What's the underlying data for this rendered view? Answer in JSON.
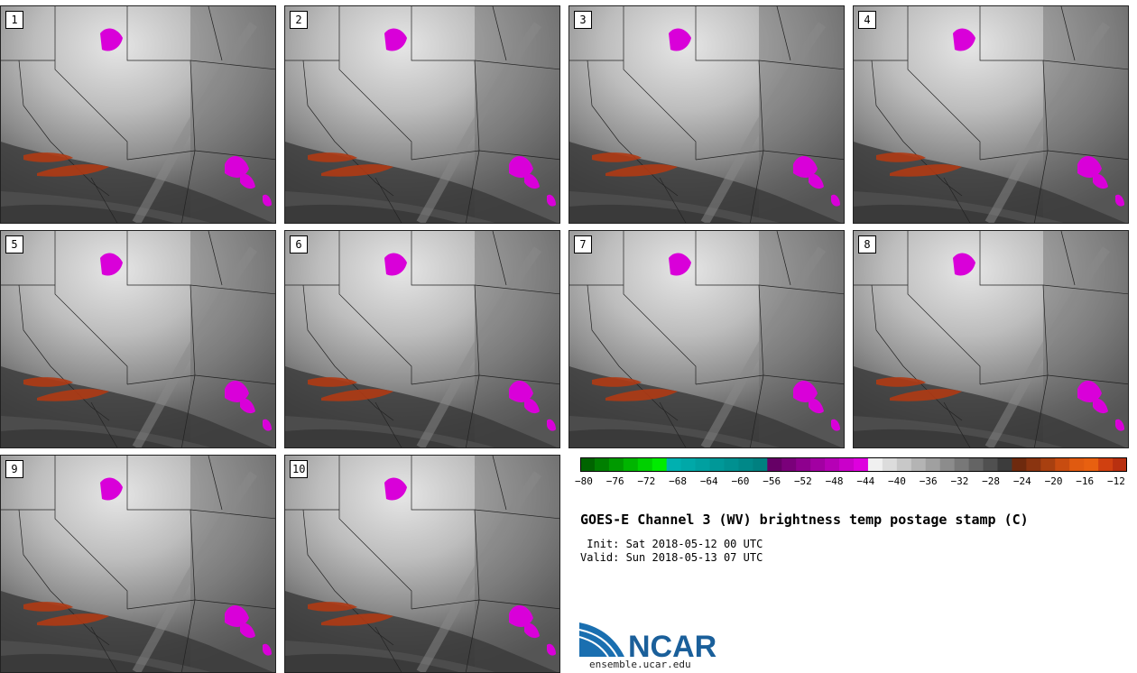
{
  "panels": [
    {
      "label": "1"
    },
    {
      "label": "2"
    },
    {
      "label": "3"
    },
    {
      "label": "4"
    },
    {
      "label": "5"
    },
    {
      "label": "6"
    },
    {
      "label": "7"
    },
    {
      "label": "8"
    },
    {
      "label": "9"
    },
    {
      "label": "10"
    }
  ],
  "colorbar": {
    "colors": [
      "#006400",
      "#007f00",
      "#009a00",
      "#00b500",
      "#00d000",
      "#00eb00",
      "#00b0b0",
      "#00a8a8",
      "#00a0a0",
      "#009898",
      "#009090",
      "#008888",
      "#008080",
      "#660066",
      "#7a007a",
      "#8e008e",
      "#a200a2",
      "#b600b6",
      "#ca00ca",
      "#de00de",
      "#f0f0f0",
      "#dcdcdc",
      "#c8c8c8",
      "#b4b4b4",
      "#a0a0a0",
      "#8c8c8c",
      "#787878",
      "#646464",
      "#505050",
      "#3c3c3c",
      "#6e2a0e",
      "#8a3410",
      "#a84010",
      "#c84c10",
      "#e05a10",
      "#e86010",
      "#d04010",
      "#b83010"
    ],
    "tick_labels": [
      "−80",
      "−76",
      "−72",
      "−68",
      "−64",
      "−60",
      "−56",
      "−52",
      "−48",
      "−44",
      "−40",
      "−36",
      "−32",
      "−28",
      "−24",
      "−20",
      "−16",
      "−12"
    ]
  },
  "title": "GOES-E Channel 3 (WV) brightness temp postage stamp (C)",
  "init": " Init: Sat 2018-05-12 00 UTC",
  "valid": "Valid: Sun 2018-05-13 07 UTC",
  "logo_text": "NCAR",
  "footer": "ensemble.ucar.edu"
}
